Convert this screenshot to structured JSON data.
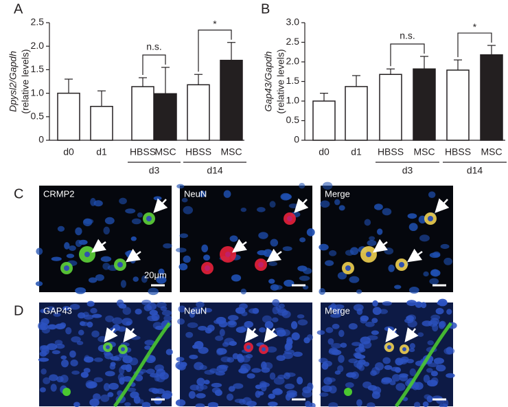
{
  "chart_data": [
    {
      "type": "bar",
      "panel": "A",
      "ylabel": [
        "Dpysl2/Gapdh",
        "(relative levels)"
      ],
      "categories": [
        "d0",
        "d1",
        "HBSS",
        "MSC",
        "HBSS",
        "MSC"
      ],
      "groups": [
        null,
        null,
        "d3",
        "d3",
        "d14",
        "d14"
      ],
      "values": [
        1.0,
        0.72,
        1.14,
        0.99,
        1.18,
        1.7
      ],
      "errors": [
        0.3,
        0.33,
        0.19,
        0.56,
        0.22,
        0.38
      ],
      "colors": [
        "#ffffff",
        "#ffffff",
        "#ffffff",
        "#231f20",
        "#ffffff",
        "#231f20"
      ],
      "ylim": [
        0,
        2.5
      ],
      "yticks": [
        0,
        0.5,
        {
          "value": 1,
          "label": "1.0"
        },
        1.5,
        {
          "value": 2,
          "label": "2.0"
        },
        2.5
      ],
      "annotations": [
        {
          "text": "n.s.",
          "group": "d3"
        },
        {
          "text": "*",
          "group": "d14"
        }
      ]
    },
    {
      "type": "bar",
      "panel": "B",
      "ylabel": [
        "Gap43/Gapdh",
        "(relative levels)"
      ],
      "categories": [
        "d0",
        "d1",
        "HBSS",
        "MSC",
        "HBSS",
        "MSC"
      ],
      "groups": [
        null,
        null,
        "d3",
        "d3",
        "d14",
        "d14"
      ],
      "values": [
        1.0,
        1.37,
        1.68,
        1.82,
        1.79,
        2.18
      ],
      "errors": [
        0.2,
        0.28,
        0.14,
        0.32,
        0.26,
        0.24
      ],
      "colors": [
        "#ffffff",
        "#ffffff",
        "#ffffff",
        "#231f20",
        "#ffffff",
        "#231f20"
      ],
      "ylim": [
        0,
        3
      ],
      "yticks": [
        0,
        0.5,
        {
          "value": 1,
          "label": "1.0"
        },
        1.5,
        {
          "value": 2,
          "label": "2.0"
        },
        2.5,
        {
          "value": 3,
          "label": "3.0"
        }
      ],
      "annotations": [
        {
          "text": "n.s.",
          "group": "d3"
        },
        {
          "text": "*",
          "group": "d14"
        }
      ]
    }
  ],
  "images": [
    {
      "panel": "C",
      "labels": [
        "CRMP2",
        "NeuN",
        "Merge"
      ],
      "scale": "20μm"
    },
    {
      "panel": "D",
      "labels": [
        "GAP43",
        "NeuN",
        "Merge"
      ]
    }
  ]
}
